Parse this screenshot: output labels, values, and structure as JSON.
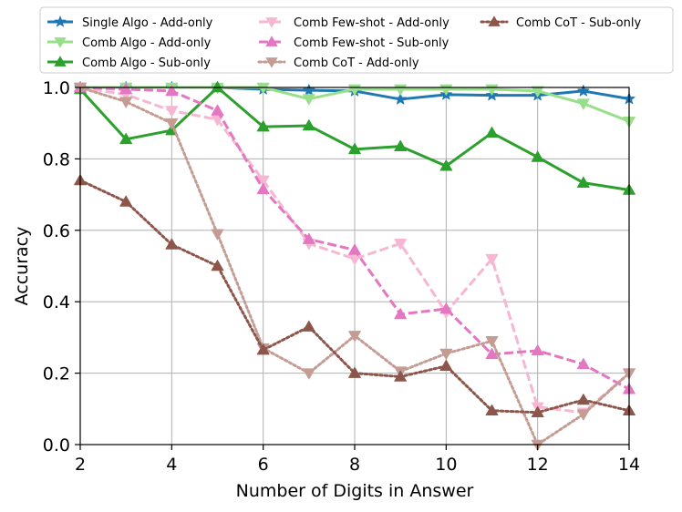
{
  "chart_data": {
    "type": "line",
    "xlabel": "Number of Digits in Answer",
    "ylabel": "Accuracy",
    "xlim": [
      2,
      14
    ],
    "ylim": [
      0.0,
      1.0
    ],
    "xticks": [
      2,
      4,
      6,
      8,
      10,
      12,
      14
    ],
    "yticks": [
      0.0,
      0.2,
      0.4,
      0.6,
      0.8,
      1.0
    ],
    "grid": true,
    "legend_position": "top",
    "x": [
      2,
      3,
      4,
      5,
      6,
      7,
      8,
      9,
      10,
      11,
      12,
      13,
      14
    ],
    "series": [
      {
        "name": "Single Algo - Add-only",
        "color": "#1f77b4",
        "marker": "star",
        "dash": "solid",
        "values": [
          1.0,
          1.0,
          1.0,
          1.0,
          0.995,
          0.992,
          0.99,
          0.967,
          0.98,
          0.978,
          0.978,
          0.99,
          0.968
        ]
      },
      {
        "name": "Comb Algo - Add-only",
        "color": "#98df8a",
        "marker": "triangle-down",
        "dash": "solid",
        "values": [
          1.0,
          1.0,
          1.0,
          1.0,
          1.0,
          0.968,
          0.995,
          0.995,
          0.995,
          0.995,
          0.99,
          0.955,
          0.905
        ]
      },
      {
        "name": "Comb Algo - Sub-only",
        "color": "#2ca02c",
        "marker": "triangle-up",
        "dash": "solid",
        "values": [
          0.995,
          0.855,
          0.88,
          1.0,
          0.89,
          0.893,
          0.827,
          0.835,
          0.78,
          0.873,
          0.805,
          0.733,
          0.713
        ]
      },
      {
        "name": "Comb Few-shot - Add-only",
        "color": "#f7b6d2",
        "marker": "triangle-down",
        "dash": "dashed",
        "values": [
          1.0,
          0.98,
          0.935,
          0.91,
          0.74,
          0.563,
          0.52,
          0.563,
          0.37,
          0.52,
          0.105,
          0.09,
          0.2
        ]
      },
      {
        "name": "Comb Few-shot - Sub-only",
        "color": "#e377c2",
        "marker": "triangle-up",
        "dash": "dashed",
        "values": [
          1.0,
          0.995,
          0.99,
          0.935,
          0.715,
          0.575,
          0.545,
          0.365,
          0.38,
          0.253,
          0.263,
          0.225,
          0.155
        ]
      },
      {
        "name": "Comb CoT - Add-only",
        "color": "#c49c94",
        "marker": "triangle-down",
        "dash": "dotted",
        "values": [
          1.0,
          0.96,
          0.9,
          0.59,
          0.27,
          0.2,
          0.305,
          0.205,
          0.255,
          0.29,
          0.0,
          0.085,
          0.2
        ]
      },
      {
        "name": "Comb CoT - Sub-only",
        "color": "#8c564b",
        "marker": "triangle-up",
        "dash": "dotted",
        "values": [
          0.74,
          0.68,
          0.56,
          0.5,
          0.265,
          0.33,
          0.2,
          0.19,
          0.22,
          0.095,
          0.09,
          0.125,
          0.095
        ]
      }
    ]
  }
}
